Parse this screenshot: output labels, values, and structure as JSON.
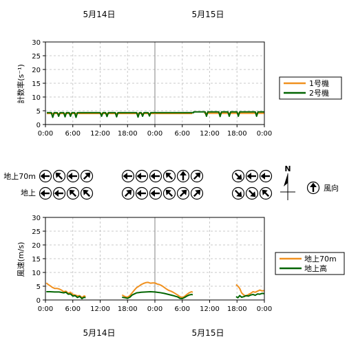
{
  "dates": {
    "day1": "5月14日",
    "day2": "5月15日"
  },
  "chart_data": [
    {
      "id": "count",
      "type": "line",
      "ylabel": "計数率(s⁻¹)",
      "ylim": [
        0,
        30
      ],
      "yticks": [
        0,
        5,
        10,
        15,
        20,
        25,
        30
      ],
      "xlim": [
        0,
        48
      ],
      "xticks": [
        0,
        6,
        12,
        18,
        24,
        30,
        36,
        42,
        48
      ],
      "xtick_labels": [
        "0:00",
        "6:00",
        "12:00",
        "18:00",
        "0:00",
        "6:00",
        "12:00",
        "18:00",
        "0:00"
      ],
      "legend_placement": "right",
      "series": [
        {
          "name": "1号機",
          "color": "#f0901e",
          "segments": [
            [
              [
                0.3,
                4.0
              ],
              [
                4,
                4.0
              ],
              [
                8,
                4.0
              ],
              [
                12,
                4.0
              ],
              [
                16,
                4.0
              ],
              [
                20,
                4.0
              ],
              [
                24,
                4.0
              ],
              [
                28,
                4.0
              ],
              [
                32.2,
                4.0
              ]
            ],
            [
              [
                34.8,
                4.1
              ],
              [
                38,
                4.1
              ],
              [
                42,
                4.1
              ],
              [
                46,
                4.1
              ],
              [
                48,
                4.1
              ]
            ]
          ]
        },
        {
          "name": "2号機",
          "color": "#006400",
          "segments": [
            [
              [
                0.3,
                4.3
              ],
              [
                1.3,
                4.3
              ],
              [
                1.6,
                2.6
              ],
              [
                1.9,
                4.3
              ],
              [
                2.6,
                4.3
              ],
              [
                2.9,
                3.0
              ],
              [
                3.2,
                4.3
              ],
              [
                4.0,
                4.3
              ],
              [
                4.3,
                2.8
              ],
              [
                4.6,
                4.3
              ],
              [
                5.2,
                4.3
              ],
              [
                5.5,
                3.0
              ],
              [
                5.8,
                4.3
              ],
              [
                6.4,
                4.3
              ],
              [
                6.7,
                2.6
              ],
              [
                7.0,
                4.3
              ],
              [
                12.0,
                4.3
              ],
              [
                12.3,
                3.0
              ],
              [
                12.6,
                4.3
              ],
              [
                13.2,
                4.3
              ],
              [
                13.5,
                2.9
              ],
              [
                13.8,
                4.3
              ],
              [
                15.3,
                4.3
              ],
              [
                15.6,
                2.8
              ],
              [
                15.9,
                4.3
              ],
              [
                20.0,
                4.3
              ],
              [
                20.3,
                2.7
              ],
              [
                20.6,
                4.3
              ],
              [
                21.0,
                4.3
              ],
              [
                21.3,
                3.0
              ],
              [
                21.6,
                4.3
              ],
              [
                22.5,
                4.3
              ],
              [
                22.8,
                3.1
              ],
              [
                23.1,
                4.3
              ],
              [
                24,
                4.3
              ],
              [
                28,
                4.3
              ],
              [
                32.5,
                4.3
              ],
              [
                32.5,
                4.6
              ],
              [
                35.0,
                4.6
              ],
              [
                35.3,
                3.0
              ],
              [
                35.6,
                4.6
              ],
              [
                38.0,
                4.6
              ],
              [
                38.3,
                2.9
              ],
              [
                38.6,
                4.6
              ],
              [
                40.0,
                4.6
              ],
              [
                40.3,
                3.0
              ],
              [
                40.6,
                4.6
              ],
              [
                42.0,
                4.6
              ],
              [
                42.3,
                3.0
              ],
              [
                42.6,
                4.6
              ],
              [
                46.0,
                4.6
              ],
              [
                46.3,
                3.0
              ],
              [
                46.6,
                4.6
              ],
              [
                48,
                4.6
              ]
            ]
          ]
        }
      ]
    },
    {
      "id": "wind",
      "type": "line",
      "ylabel": "風速(m/s)",
      "ylim": [
        0,
        30
      ],
      "yticks": [
        0,
        5,
        10,
        15,
        20,
        25,
        30
      ],
      "xlim": [
        0,
        48
      ],
      "xticks": [
        0,
        6,
        12,
        18,
        24,
        30,
        36,
        42,
        48
      ],
      "xtick_labels": [
        "0:00",
        "6:00",
        "12:00",
        "18:00",
        "0:00",
        "6:00",
        "12:00",
        "18:00",
        "0:00"
      ],
      "legend_placement": "right",
      "series": [
        {
          "name": "地上70m",
          "color": "#f0901e",
          "segments": [
            [
              [
                0.2,
                6.2
              ],
              [
                0.6,
                5.6
              ],
              [
                1.0,
                5.2
              ],
              [
                1.5,
                4.6
              ],
              [
                2.0,
                4.2
              ],
              [
                2.5,
                4.2
              ],
              [
                3.0,
                4.0
              ],
              [
                3.5,
                3.6
              ],
              [
                4.0,
                3.0
              ],
              [
                4.5,
                3.2
              ],
              [
                5.0,
                2.4
              ],
              [
                5.5,
                2.8
              ],
              [
                6.0,
                2.0
              ],
              [
                6.5,
                1.8
              ],
              [
                7.0,
                1.5
              ],
              [
                7.5,
                1.6
              ],
              [
                8.0,
                0.9
              ],
              [
                8.5,
                1.5
              ],
              [
                8.8,
                1.2
              ]
            ],
            [
              [
                16.8,
                1.8
              ],
              [
                17.5,
                1.2
              ],
              [
                18.0,
                1.0
              ],
              [
                18.5,
                1.6
              ],
              [
                19.0,
                2.6
              ],
              [
                19.5,
                3.6
              ],
              [
                20.0,
                4.5
              ],
              [
                20.5,
                5.0
              ],
              [
                21.0,
                5.6
              ],
              [
                21.5,
                6.0
              ],
              [
                22.0,
                6.3
              ],
              [
                22.5,
                6.4
              ],
              [
                23.0,
                6.1
              ],
              [
                23.5,
                6.2
              ],
              [
                24.0,
                6.2
              ],
              [
                24.5,
                5.8
              ],
              [
                25.0,
                5.6
              ],
              [
                25.5,
                5.2
              ],
              [
                26.0,
                4.6
              ],
              [
                26.5,
                4.0
              ],
              [
                27.0,
                3.5
              ],
              [
                27.5,
                3.2
              ],
              [
                28.0,
                2.8
              ],
              [
                28.5,
                2.3
              ],
              [
                29.0,
                1.8
              ],
              [
                29.5,
                1.2
              ],
              [
                30.0,
                0.9
              ],
              [
                30.5,
                1.3
              ],
              [
                31.0,
                2.0
              ],
              [
                31.5,
                2.6
              ],
              [
                32.0,
                3.0
              ],
              [
                32.3,
                2.8
              ]
            ],
            [
              [
                41.8,
                5.6
              ],
              [
                42.2,
                5.0
              ],
              [
                42.6,
                4.2
              ],
              [
                43.0,
                2.6
              ],
              [
                43.5,
                1.8
              ],
              [
                44.0,
                1.4
              ],
              [
                44.5,
                2.0
              ],
              [
                45.0,
                2.4
              ],
              [
                45.5,
                3.0
              ],
              [
                46.0,
                2.8
              ],
              [
                46.5,
                3.2
              ],
              [
                47.0,
                3.6
              ],
              [
                47.5,
                3.3
              ],
              [
                48.0,
                3.4
              ]
            ]
          ]
        },
        {
          "name": "地上高",
          "color": "#006400",
          "segments": [
            [
              [
                0.2,
                3.0
              ],
              [
                1.0,
                3.0
              ],
              [
                2.0,
                2.9
              ],
              [
                3.0,
                2.9
              ],
              [
                4.0,
                2.6
              ],
              [
                4.5,
                2.8
              ],
              [
                5.0,
                2.1
              ],
              [
                5.5,
                2.2
              ],
              [
                6.0,
                1.4
              ],
              [
                6.5,
                1.6
              ],
              [
                7.0,
                0.9
              ],
              [
                7.5,
                1.3
              ],
              [
                8.0,
                0.5
              ],
              [
                8.5,
                1.0
              ],
              [
                8.8,
                0.8
              ]
            ],
            [
              [
                16.8,
                1.0
              ],
              [
                17.5,
                0.8
              ],
              [
                18.0,
                0.6
              ],
              [
                18.5,
                1.0
              ],
              [
                19.0,
                1.8
              ],
              [
                19.5,
                2.2
              ],
              [
                20.0,
                2.6
              ],
              [
                20.5,
                2.7
              ],
              [
                21.0,
                2.8
              ],
              [
                22.0,
                2.9
              ],
              [
                23.0,
                3.0
              ],
              [
                24.0,
                2.9
              ],
              [
                25.0,
                2.7
              ],
              [
                26.0,
                2.4
              ],
              [
                27.0,
                2.0
              ],
              [
                28.0,
                1.6
              ],
              [
                29.0,
                1.1
              ],
              [
                29.5,
                0.6
              ],
              [
                30.0,
                0.5
              ],
              [
                30.5,
                0.9
              ],
              [
                31.0,
                1.4
              ],
              [
                31.5,
                1.8
              ],
              [
                32.0,
                2.0
              ],
              [
                32.3,
                1.9
              ]
            ],
            [
              [
                41.8,
                1.2
              ],
              [
                42.2,
                0.8
              ],
              [
                42.6,
                1.6
              ],
              [
                43.0,
                1.0
              ],
              [
                43.5,
                1.2
              ],
              [
                44.0,
                1.6
              ],
              [
                44.5,
                1.4
              ],
              [
                45.0,
                1.8
              ],
              [
                45.5,
                2.0
              ],
              [
                46.0,
                1.7
              ],
              [
                46.5,
                2.2
              ],
              [
                47.0,
                2.1
              ],
              [
                47.5,
                2.4
              ],
              [
                48.0,
                2.3
              ]
            ]
          ]
        }
      ]
    }
  ],
  "wind_direction": {
    "rows": [
      {
        "label": "地上70m",
        "arrows": [
          {
            "group": 1,
            "dir": "W"
          },
          {
            "group": 1,
            "dir": "NW"
          },
          {
            "group": 1,
            "dir": "W"
          },
          {
            "group": 1,
            "dir": "NE"
          },
          {
            "group": 2,
            "dir": "W"
          },
          {
            "group": 2,
            "dir": "W"
          },
          {
            "group": 2,
            "dir": "W"
          },
          {
            "group": 2,
            "dir": "NW"
          },
          {
            "group": 2,
            "dir": "N"
          },
          {
            "group": 2,
            "dir": "NE"
          },
          {
            "group": 3,
            "dir": "SE"
          },
          {
            "group": 3,
            "dir": "W"
          },
          {
            "group": 3,
            "dir": "W"
          }
        ]
      },
      {
        "label": "地上",
        "arrows": [
          {
            "group": 1,
            "dir": "W"
          },
          {
            "group": 1,
            "dir": "W"
          },
          {
            "group": 1,
            "dir": "NW"
          },
          {
            "group": 1,
            "dir": "NW"
          },
          {
            "group": 2,
            "dir": "NE"
          },
          {
            "group": 2,
            "dir": "W"
          },
          {
            "group": 2,
            "dir": "W"
          },
          {
            "group": 2,
            "dir": "NW"
          },
          {
            "group": 2,
            "dir": "NE"
          },
          {
            "group": 2,
            "dir": "NE"
          },
          {
            "group": 3,
            "dir": "SE"
          },
          {
            "group": 3,
            "dir": "SE"
          },
          {
            "group": 3,
            "dir": "NW"
          }
        ]
      }
    ],
    "compass_label": "N",
    "legend_label": "風向",
    "legend_dir": "N"
  }
}
